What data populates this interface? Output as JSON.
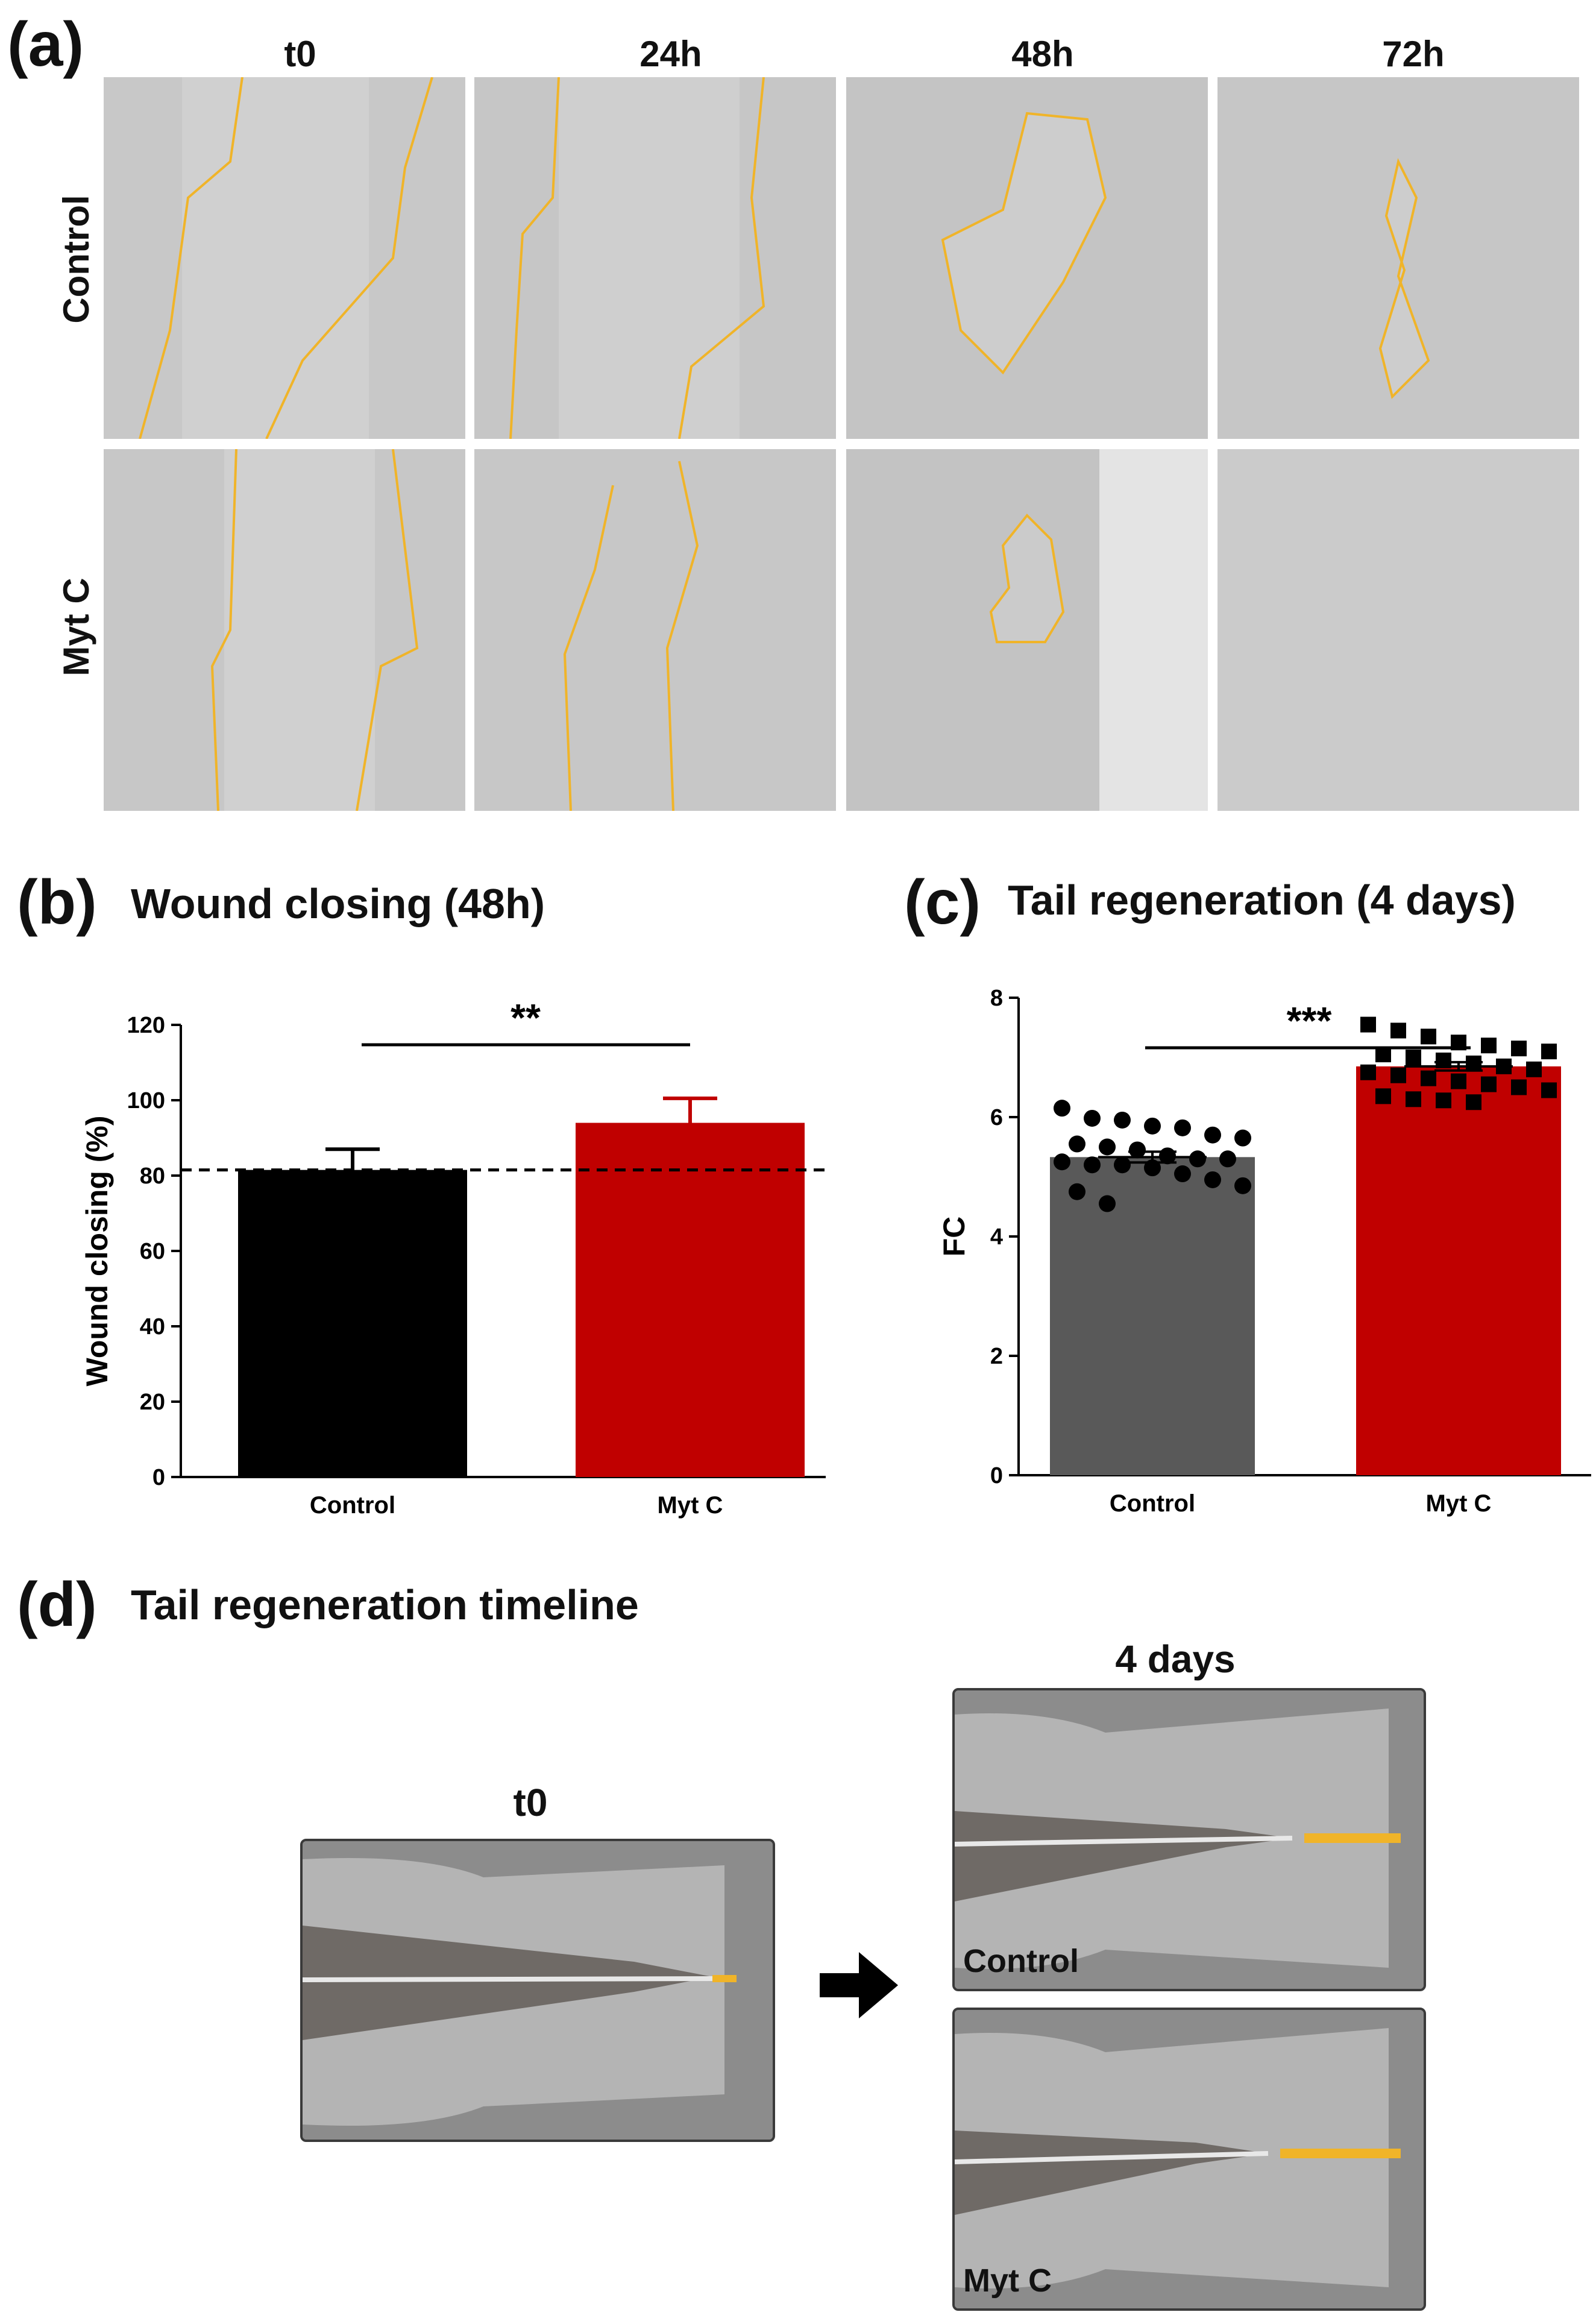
{
  "panel_a": {
    "letter": "(a)",
    "columns": [
      "t0",
      "24h",
      "48h",
      "72h"
    ],
    "rows": [
      "Control",
      "Myt C"
    ]
  },
  "panel_b": {
    "letter": "(b)",
    "title": "Wound closing (48h)"
  },
  "panel_c": {
    "letter": "(c)",
    "title": "Tail regeneration (4 days)"
  },
  "panel_d": {
    "letter": "(d)",
    "title": "Tail regeneration timeline",
    "t0_label": "t0",
    "days_label": "4 days",
    "control_label": "Control",
    "mytc_label": "Myt C"
  },
  "colors": {
    "control_b": "#000000",
    "mytc": "#c00000",
    "control_c": "#595959",
    "outline": "#f0b429",
    "micro_bg": "#c9c9c9"
  },
  "chart_data": [
    {
      "type": "bar",
      "title": "Wound closing (48h)",
      "ylabel": "Wound closing (%)",
      "xlabel": "",
      "categories": [
        "Control",
        "Myt C"
      ],
      "values": [
        81.5,
        94
      ],
      "errors": [
        5.5,
        6.5
      ],
      "ylim": [
        0,
        120
      ],
      "yticks": [
        0,
        20,
        40,
        60,
        80,
        100,
        120
      ],
      "reference_line": 81.5,
      "significance": "**"
    },
    {
      "type": "bar",
      "title": "Tail regeneration (4 days)",
      "ylabel": "FC",
      "xlabel": "",
      "categories": [
        "Control",
        "Myt C"
      ],
      "values": [
        5.33,
        6.85
      ],
      "errors": [
        0.09,
        0.07
      ],
      "ylim": [
        0,
        8
      ],
      "yticks": [
        0,
        2,
        4,
        6,
        8
      ],
      "significance": "***",
      "points": [
        [
          6.15,
          5.98,
          5.95,
          5.85,
          5.82,
          5.7,
          5.65,
          5.55,
          5.5,
          5.45,
          5.35,
          5.3,
          5.3,
          5.25,
          5.2,
          5.2,
          5.15,
          5.05,
          4.95,
          4.85,
          4.75,
          4.55
        ],
        [
          7.55,
          7.45,
          7.35,
          7.25,
          7.2,
          7.15,
          7.1,
          7.05,
          7.0,
          6.95,
          6.9,
          6.85,
          6.8,
          6.75,
          6.7,
          6.65,
          6.6,
          6.55,
          6.5,
          6.45,
          6.35,
          6.3,
          6.28,
          6.25
        ]
      ]
    }
  ]
}
